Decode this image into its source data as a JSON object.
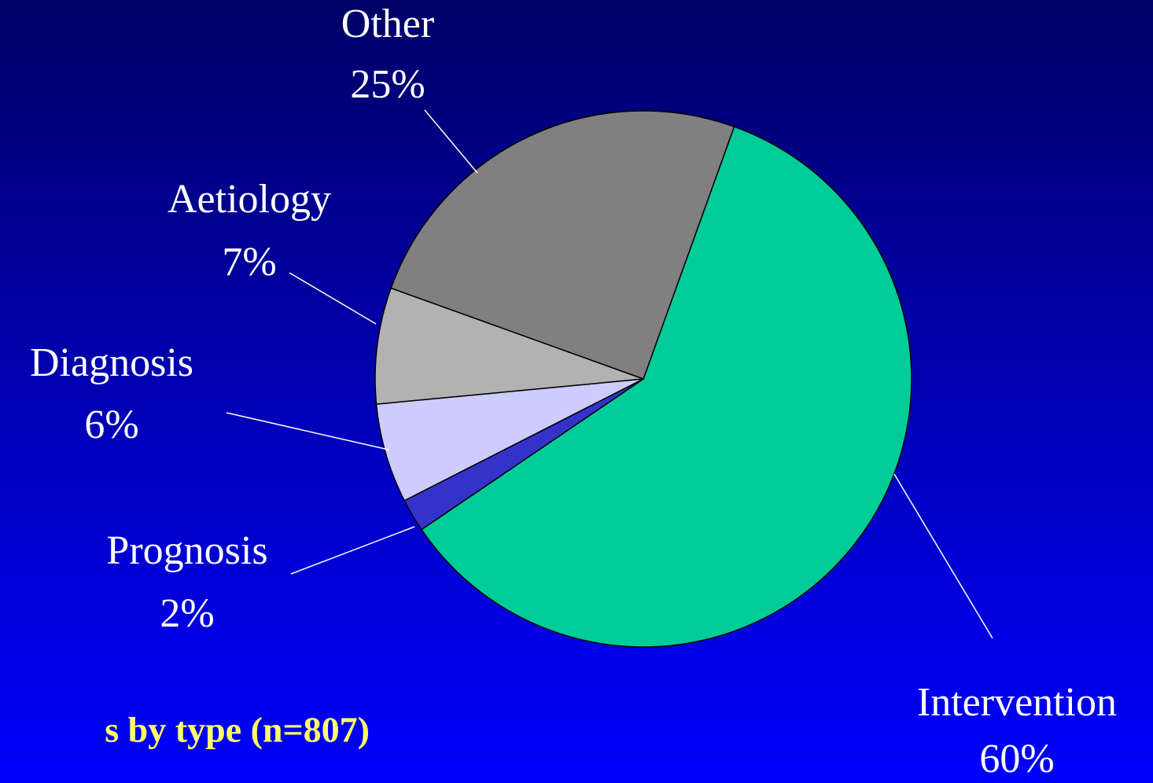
{
  "chart_data": {
    "type": "pie",
    "title": "s by type (n=807)",
    "categories": [
      "Intervention",
      "Prognosis",
      "Diagnosis",
      "Aetiology",
      "Other"
    ],
    "values": [
      60,
      2,
      6,
      7,
      25
    ],
    "value_labels": [
      "60%",
      "2%",
      "6%",
      "7%",
      "25%"
    ],
    "colors": [
      "#00cc99",
      "#3333cc",
      "#ccccff",
      "#b2b2b2",
      "#808080"
    ]
  }
}
